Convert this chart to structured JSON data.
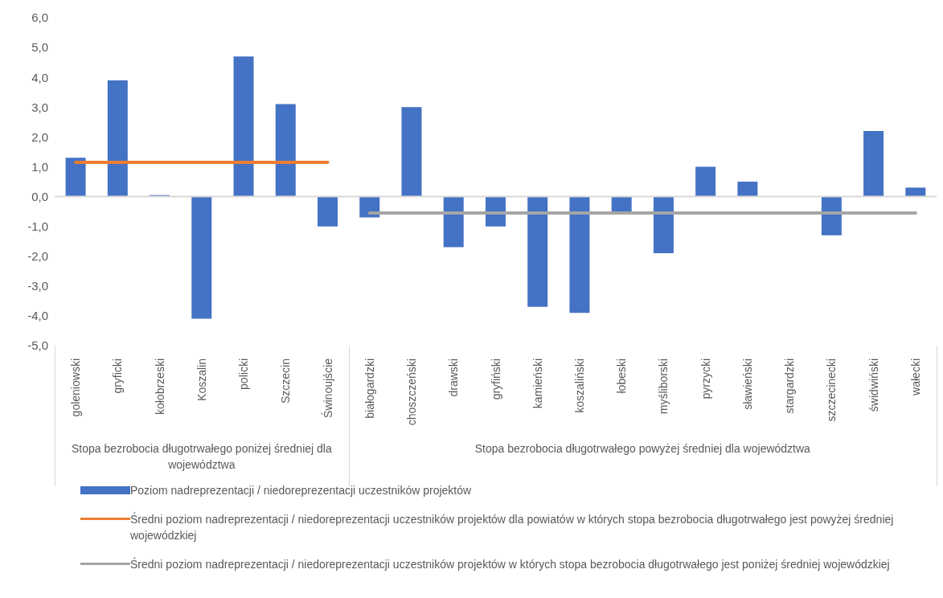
{
  "chart_data": {
    "type": "bar",
    "categories": [
      "goleniowski",
      "gryficki",
      "kołobrzeski",
      "Koszalin",
      "policki",
      "Szczecin",
      "Świnoujście",
      "białogardzki",
      "choszczeński",
      "drawski",
      "gryfiński",
      "kamieński",
      "koszaliński",
      "łobeski",
      "myśliborski",
      "pyrzycki",
      "sławieński",
      "stargardzki",
      "szczecinecki",
      "świdwiński",
      "wałecki"
    ],
    "series": [
      {
        "name": "Poziom nadreprezentacji / niedoreprezentacji uczestników projektów",
        "color": "#4472c4",
        "values": [
          1.3,
          3.9,
          0.05,
          -4.1,
          4.7,
          3.1,
          -1.0,
          -0.7,
          3.0,
          -1.7,
          -1.0,
          -3.7,
          -3.9,
          -0.5,
          -1.9,
          1.0,
          0.5,
          0.0,
          -1.3,
          2.2,
          0.3
        ]
      },
      {
        "name": "Średni poziom nadreprezentacji / niedoreprezentacji uczestników projektów dla powiatów w których stopa bezrobocia długotrwałego jest powyżej średniej wojewódzkiej",
        "type": "line",
        "color": "#ed7d31",
        "values": [
          1.15,
          1.15,
          1.15,
          1.15,
          1.15,
          1.15,
          1.15,
          null,
          null,
          null,
          null,
          null,
          null,
          null,
          null,
          null,
          null,
          null,
          null,
          null,
          null
        ]
      },
      {
        "name": "Średni poziom nadreprezentacji / niedoreprezentacji uczestników projektów w których stopa bezrobocia długotrwałego jest poniżej średniej wojewódzkiej",
        "type": "line",
        "color": "#a5a5a5",
        "values": [
          null,
          null,
          null,
          null,
          null,
          null,
          null,
          -0.55,
          -0.55,
          -0.55,
          -0.55,
          -0.55,
          -0.55,
          -0.55,
          -0.55,
          -0.55,
          -0.55,
          -0.55,
          -0.55,
          -0.55,
          -0.55
        ]
      }
    ],
    "ylim": [
      -5,
      6
    ],
    "yticks": [
      {
        "value": -5,
        "label": "-5,0"
      },
      {
        "value": -4,
        "label": "-4,0"
      },
      {
        "value": -3,
        "label": "-3,0"
      },
      {
        "value": -2,
        "label": "-2,0"
      },
      {
        "value": -1,
        "label": "-1,0"
      },
      {
        "value": 0,
        "label": "0,0"
      },
      {
        "value": 1,
        "label": "1,0"
      },
      {
        "value": 2,
        "label": "2,0"
      },
      {
        "value": 3,
        "label": "3,0"
      },
      {
        "value": 4,
        "label": "4,0"
      },
      {
        "value": 5,
        "label": "5,0"
      },
      {
        "value": 6,
        "label": "6,0"
      }
    ],
    "ref_lines": [
      {
        "axis": "y",
        "value": 0,
        "color": "#d9d9d9"
      }
    ],
    "annotations": [
      "Stopa bezrobocia długotrwałego poniżej średniej dla województwa",
      "Stopa bezrobocia długotrwałego powyżej średniej dla województwa"
    ],
    "grid": false,
    "legend": "bottom"
  }
}
